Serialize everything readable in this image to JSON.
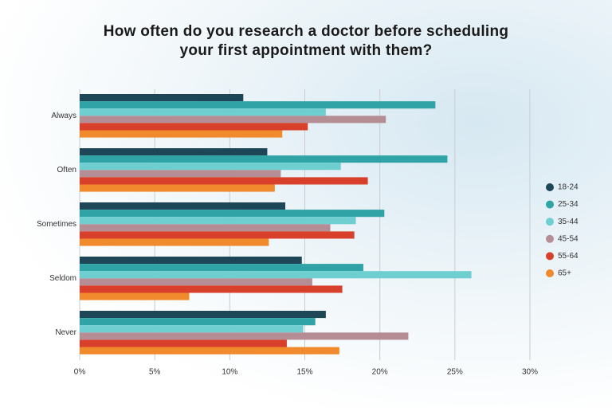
{
  "chart_data": {
    "type": "bar",
    "orientation": "horizontal",
    "title": "How often do you research a doctor before scheduling your first appointment with them?",
    "categories": [
      "Always",
      "Often",
      "Sometimes",
      "Seldom",
      "Never"
    ],
    "series": [
      {
        "name": "18-24",
        "color": "#1d4656",
        "values": [
          10.9,
          12.5,
          13.7,
          14.8,
          16.4
        ]
      },
      {
        "name": "25-34",
        "color": "#2fa3a5",
        "values": [
          23.7,
          24.5,
          20.3,
          18.9,
          15.7
        ]
      },
      {
        "name": "35-44",
        "color": "#6fcfd0",
        "values": [
          16.4,
          17.4,
          18.4,
          26.1,
          14.9
        ]
      },
      {
        "name": "45-54",
        "color": "#b58e95",
        "values": [
          20.4,
          13.4,
          16.7,
          15.5,
          21.9
        ]
      },
      {
        "name": "55-64",
        "color": "#d9402b",
        "values": [
          15.2,
          19.2,
          18.3,
          17.5,
          13.8
        ]
      },
      {
        "name": "65+",
        "color": "#f08a2c",
        "values": [
          13.5,
          13.0,
          12.6,
          7.3,
          17.3
        ]
      }
    ],
    "xlim": [
      0,
      30
    ],
    "xticks": [
      {
        "value": 0,
        "label": "0%"
      },
      {
        "value": 5,
        "label": "5%"
      },
      {
        "value": 10,
        "label": "10%"
      },
      {
        "value": 15,
        "label": "15%"
      },
      {
        "value": 20,
        "label": "20%"
      },
      {
        "value": 25,
        "label": "25%"
      },
      {
        "value": 30,
        "label": "30%"
      }
    ],
    "grid": true,
    "legend": "right"
  }
}
